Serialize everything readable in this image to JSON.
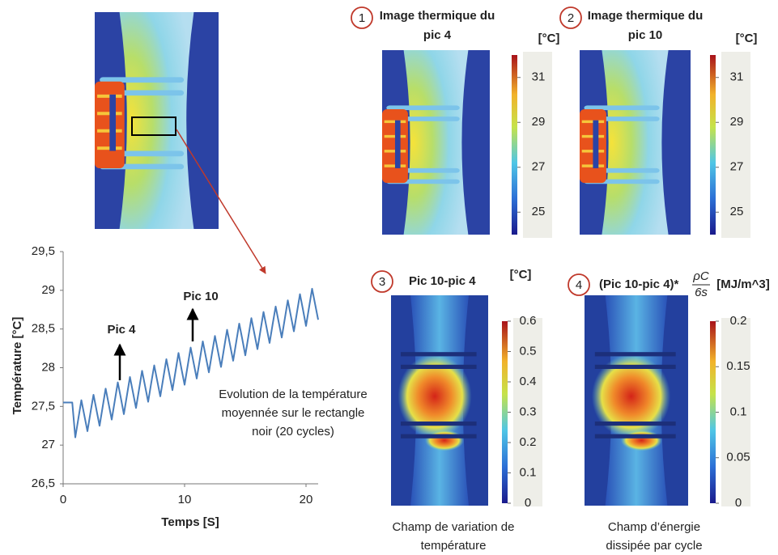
{
  "chart_data": {
    "type": "line",
    "x_label": "Temps [S]",
    "y_label": "Température [°C]",
    "xlim": [
      0,
      21
    ],
    "xticks": [
      0,
      10,
      20
    ],
    "ylim": [
      26.5,
      29.5
    ],
    "yticks": [
      {
        "value": 26.5,
        "label": "26,5"
      },
      27,
      {
        "value": 27.5,
        "label": "27,5"
      },
      28,
      {
        "value": 28.5,
        "label": "28,5"
      },
      29,
      {
        "value": 29.5,
        "label": "29,5"
      }
    ],
    "x": [
      0,
      0.25,
      0.5,
      0.75,
      1,
      1.25,
      1.5,
      1.75,
      2,
      2.25,
      2.5,
      2.75,
      3,
      3.25,
      3.5,
      3.75,
      4,
      4.25,
      4.5,
      4.75,
      5,
      5.25,
      5.5,
      5.75,
      6,
      6.25,
      6.5,
      6.75,
      7,
      7.25,
      7.5,
      7.75,
      8,
      8.25,
      8.5,
      8.75,
      9,
      9.25,
      9.5,
      9.75,
      10,
      10.25,
      10.5,
      10.75,
      11,
      11.25,
      11.5,
      11.75,
      12,
      12.25,
      12.5,
      12.75,
      13,
      13.25,
      13.5,
      13.75,
      14,
      14.25,
      14.5,
      14.75,
      15,
      15.25,
      15.5,
      15.75,
      16,
      16.25,
      16.5,
      16.75,
      17,
      17.25,
      17.5,
      17.75,
      18,
      18.25,
      18.5,
      18.75,
      19,
      19.25,
      19.5,
      19.75,
      20,
      20.25,
      20.5,
      20.75,
      21
    ],
    "series": [
      {
        "color": "#4a7ebb",
        "values": [
          27.55,
          27.55,
          27.55,
          27.55,
          27.1,
          27.34,
          27.58,
          27.38,
          27.18,
          27.42,
          27.65,
          27.45,
          27.25,
          27.49,
          27.73,
          27.53,
          27.33,
          27.57,
          27.81,
          27.61,
          27.4,
          27.64,
          27.88,
          27.68,
          27.48,
          27.72,
          27.96,
          27.76,
          27.56,
          27.8,
          28.03,
          27.83,
          27.63,
          27.87,
          28.11,
          27.91,
          27.71,
          27.95,
          28.19,
          27.98,
          27.78,
          28.02,
          28.26,
          28.06,
          27.86,
          28.1,
          28.34,
          28.14,
          27.94,
          28.18,
          28.41,
          28.21,
          28.01,
          28.25,
          28.49,
          28.29,
          28.09,
          28.33,
          28.57,
          28.37,
          28.16,
          28.4,
          28.64,
          28.44,
          28.24,
          28.48,
          28.72,
          28.52,
          28.32,
          28.56,
          28.79,
          28.59,
          28.39,
          28.63,
          28.87,
          28.67,
          28.47,
          28.71,
          28.95,
          28.75,
          28.54,
          28.78,
          29.02,
          28.82,
          28.62
        ]
      }
    ],
    "notes": [
      "Pic 4",
      "Pic 10"
    ],
    "caption": [
      "Evolution de la température",
      "moyennée sur le rectangle",
      "noir (20 cycles)"
    ]
  },
  "panels": [
    {
      "number": "1",
      "title": [
        "Image thermique du",
        "pic 4"
      ],
      "unit": "[°C]",
      "colorbar_range": [
        24,
        32
      ],
      "colorbar_ticks": [
        25,
        27,
        29,
        31
      ]
    },
    {
      "number": "2",
      "title": [
        "Image thermique du",
        "pic 10"
      ],
      "unit": "[°C]",
      "colorbar_range": [
        24,
        32
      ],
      "colorbar_ticks": [
        25,
        27,
        29,
        31
      ]
    },
    {
      "number": "3",
      "title": [
        "Pic 10-pic 4"
      ],
      "unit": "[°C]",
      "colorbar_range": [
        0,
        0.6
      ],
      "colorbar_ticks": [
        0,
        0.1,
        0.2,
        0.3,
        0.4,
        0.5,
        0.6
      ],
      "caption": [
        "Champ de variation de",
        "température"
      ]
    },
    {
      "number": "4",
      "title": [
        "(Pic 10-pic 4)*"
      ],
      "formula": {
        "numerator": "ρC",
        "denominator": "6s"
      },
      "unit": "[MJ/m^3]",
      "colorbar_range": [
        0,
        0.2
      ],
      "colorbar_ticks": [
        0,
        0.05,
        0.1,
        0.15,
        0.2
      ],
      "caption": [
        "Champ d’énergie",
        "dissipée par cycle"
      ]
    }
  ]
}
